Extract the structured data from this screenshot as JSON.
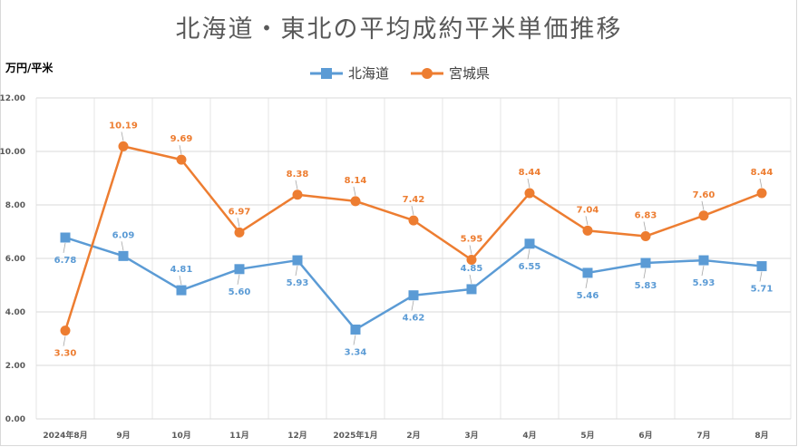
{
  "chart_data": {
    "type": "line",
    "title": "北海道・東北の平均成約平米単価推移",
    "ylabel": "万円/平米",
    "ylim": [
      0,
      12
    ],
    "yticks": [
      "0.00",
      "2.00",
      "4.00",
      "6.00",
      "8.00",
      "10.00",
      "12.00"
    ],
    "categories": [
      "2024年8月",
      "9月",
      "10月",
      "11月",
      "12月",
      "2025年1月",
      "2月",
      "3月",
      "4月",
      "5月",
      "6月",
      "7月",
      "8月"
    ],
    "grid": true,
    "legend": "top-center",
    "series": [
      {
        "name": "北海道",
        "color": "#5b9bd5",
        "marker": "square",
        "values": [
          6.78,
          6.09,
          4.81,
          5.6,
          5.93,
          3.34,
          4.62,
          4.85,
          6.55,
          5.46,
          5.83,
          5.93,
          5.71
        ],
        "labels": [
          "6.78",
          "6.09",
          "4.81",
          "5.60",
          "5.93",
          "3.34",
          "4.62",
          "4.85",
          "6.55",
          "5.46",
          "5.83",
          "5.93",
          "5.71"
        ]
      },
      {
        "name": "宮城県",
        "color": "#ed7d31",
        "marker": "circle",
        "values": [
          3.3,
          10.19,
          9.69,
          6.97,
          8.38,
          8.14,
          7.42,
          5.95,
          8.44,
          7.04,
          6.83,
          7.6,
          8.44
        ],
        "labels": [
          "3.30",
          "10.19",
          "9.69",
          "6.97",
          "8.38",
          "8.14",
          "7.42",
          "5.95",
          "8.44",
          "7.04",
          "6.83",
          "7.60",
          "8.44"
        ]
      }
    ]
  }
}
